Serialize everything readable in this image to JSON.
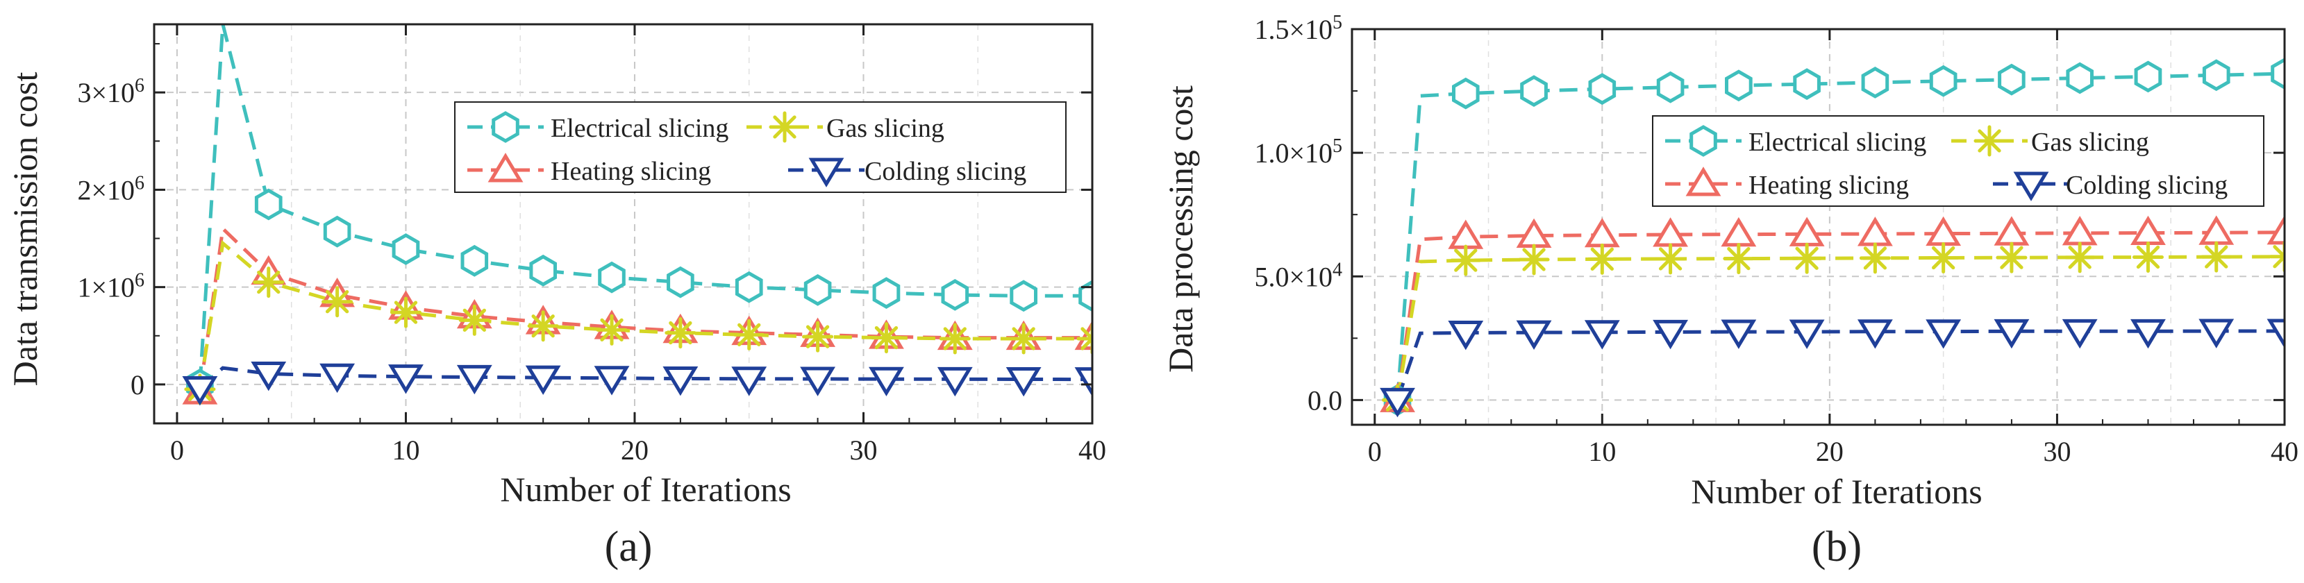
{
  "colors": {
    "electrical": "#3fbfbd",
    "heating": "#ee6b62",
    "gas": "#d4d624",
    "colding": "#1f3f99",
    "grid": "#c8c8c8",
    "axis": "#222222"
  },
  "chart_data": [
    {
      "type": "line",
      "panel": "(a)",
      "caption": "(a)",
      "xlabel": "Number of Iterations",
      "ylabel": "Data transmission cost",
      "xlim": [
        -1,
        40
      ],
      "ylim": [
        -400000,
        3700000
      ],
      "xticks": [
        0,
        10,
        20,
        30,
        40
      ],
      "xtick_labels": [
        "0",
        "10",
        "20",
        "30",
        "40"
      ],
      "yticks": [
        0,
        1000000,
        2000000,
        3000000
      ],
      "ytick_labels": [
        {
          "mant": "0",
          "exp": ""
        },
        {
          "mant": "1×10",
          "exp": "6"
        },
        {
          "mant": "2×10",
          "exp": "6"
        },
        {
          "mant": "3×10",
          "exp": "6"
        }
      ],
      "grid": true,
      "legend_position": "upper-right",
      "marker_x": [
        1,
        4,
        7,
        10,
        13,
        16,
        19,
        22,
        25,
        28,
        31,
        34,
        37,
        40
      ],
      "series": [
        {
          "name": "Electrical slicing",
          "marker": "hexagon",
          "color_key": "electrical",
          "x": [
            1,
            2,
            4,
            7,
            10,
            13,
            16,
            19,
            22,
            25,
            28,
            31,
            34,
            37,
            40
          ],
          "values": [
            0,
            3700000,
            1850000,
            1570000,
            1390000,
            1270000,
            1170000,
            1100000,
            1050000,
            1000000,
            970000,
            940000,
            920000,
            910000,
            910000
          ]
        },
        {
          "name": "Heating slicing",
          "marker": "triangle-up",
          "color_key": "heating",
          "x": [
            1,
            2,
            4,
            7,
            10,
            13,
            16,
            19,
            22,
            25,
            28,
            31,
            34,
            37,
            40
          ],
          "values": [
            -80000,
            1600000,
            1150000,
            920000,
            790000,
            700000,
            640000,
            590000,
            550000,
            530000,
            510000,
            490000,
            480000,
            480000,
            480000
          ]
        },
        {
          "name": "Gas slicing",
          "marker": "asterisk",
          "color_key": "gas",
          "x": [
            1,
            2,
            4,
            7,
            10,
            13,
            16,
            19,
            22,
            25,
            28,
            31,
            34,
            37,
            40
          ],
          "values": [
            -50000,
            1450000,
            1050000,
            850000,
            740000,
            660000,
            600000,
            560000,
            530000,
            510000,
            490000,
            480000,
            470000,
            470000,
            470000
          ]
        },
        {
          "name": "Colding slicing",
          "marker": "triangle-down",
          "color_key": "colding",
          "x": [
            1,
            2,
            4,
            7,
            10,
            13,
            16,
            19,
            22,
            25,
            28,
            31,
            34,
            37,
            40
          ],
          "values": [
            -40000,
            170000,
            110000,
            90000,
            80000,
            75000,
            70000,
            65000,
            60000,
            58000,
            56000,
            55000,
            54000,
            53000,
            52000
          ]
        }
      ]
    },
    {
      "type": "line",
      "panel": "(b)",
      "caption": "(b)",
      "xlabel": "Number of Iterations",
      "ylabel": "Data processing cost",
      "xlim": [
        -1,
        40
      ],
      "ylim": [
        -10000,
        150000
      ],
      "xticks": [
        0,
        10,
        20,
        30,
        40
      ],
      "xtick_labels": [
        "0",
        "10",
        "20",
        "30",
        "40"
      ],
      "yticks": [
        0,
        50000,
        100000,
        150000
      ],
      "ytick_labels": [
        {
          "mant": "0.0",
          "exp": ""
        },
        {
          "mant": "5.0×10",
          "exp": "4"
        },
        {
          "mant": "1.0×10",
          "exp": "5"
        },
        {
          "mant": "1.5×10",
          "exp": "5"
        }
      ],
      "grid": true,
      "legend_position": "upper-right",
      "marker_x": [
        1,
        4,
        7,
        10,
        13,
        16,
        19,
        22,
        25,
        28,
        31,
        34,
        37,
        40
      ],
      "series": [
        {
          "name": "Electrical slicing",
          "marker": "hexagon",
          "color_key": "electrical",
          "x": [
            1,
            2,
            4,
            7,
            10,
            13,
            16,
            19,
            22,
            25,
            28,
            31,
            34,
            37,
            40
          ],
          "values": [
            0,
            123000,
            124000,
            125000,
            125800,
            126500,
            127200,
            127800,
            128400,
            129000,
            129600,
            130200,
            130800,
            131400,
            132000
          ]
        },
        {
          "name": "Heating slicing",
          "marker": "triangle-up",
          "color_key": "heating",
          "x": [
            1,
            2,
            4,
            7,
            10,
            13,
            16,
            19,
            22,
            25,
            28,
            31,
            34,
            37,
            40
          ],
          "values": [
            0,
            65000,
            66000,
            66500,
            66700,
            66900,
            67000,
            67100,
            67200,
            67300,
            67400,
            67500,
            67600,
            67700,
            67800
          ]
        },
        {
          "name": "Gas slicing",
          "marker": "asterisk",
          "color_key": "gas",
          "x": [
            1,
            2,
            4,
            7,
            10,
            13,
            16,
            19,
            22,
            25,
            28,
            31,
            34,
            37,
            40
          ],
          "values": [
            0,
            56000,
            56500,
            56800,
            57000,
            57100,
            57200,
            57300,
            57400,
            57500,
            57600,
            57700,
            57800,
            57900,
            58000
          ]
        },
        {
          "name": "Colding slicing",
          "marker": "triangle-down",
          "color_key": "colding",
          "x": [
            1,
            2,
            4,
            7,
            10,
            13,
            16,
            19,
            22,
            25,
            28,
            31,
            34,
            37,
            40
          ],
          "values": [
            0,
            27000,
            27200,
            27300,
            27400,
            27500,
            27600,
            27600,
            27700,
            27700,
            27800,
            27800,
            27800,
            27900,
            27900
          ]
        }
      ]
    }
  ]
}
